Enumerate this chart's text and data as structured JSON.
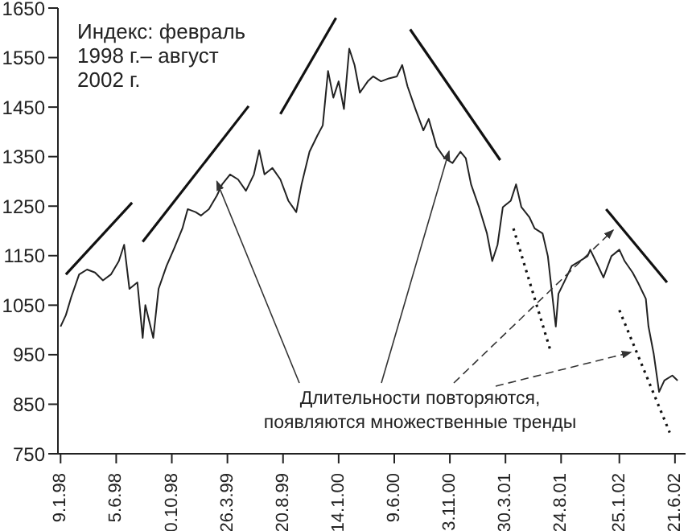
{
  "chart_data": {
    "type": "line",
    "title": "Индекс: февраль 1998 г.– август 2002 г.",
    "annotations": [
      {
        "text": "Длительности повторяются, появляются множественные тренды",
        "x": "1999-02-26",
        "y": 1300
      }
    ],
    "xlim": [
      "1998-01-02",
      "2002-07-19"
    ],
    "xticks": [
      {
        "value": "1998-01-09",
        "label": "9.1.98"
      },
      {
        "value": "1998-06-05",
        "label": "5.6.98"
      },
      {
        "value": "1998-10-30",
        "label": "0.10.98"
      },
      {
        "value": "1999-03-26",
        "label": "26.3.99"
      },
      {
        "value": "1999-08-20",
        "label": "20.8.99"
      },
      {
        "value": "2000-01-14",
        "label": "14.1.00"
      },
      {
        "value": "2000-06-09",
        "label": "9.6.00"
      },
      {
        "value": "2000-11-03",
        "label": "3.11.00"
      },
      {
        "value": "2001-03-30",
        "label": "30.3.01"
      },
      {
        "value": "2001-08-24",
        "label": "24.8.01"
      },
      {
        "value": "2002-01-25",
        "label": "25.1.02"
      },
      {
        "value": "2002-06-21",
        "label": "21.6.02"
      }
    ],
    "ylim": [
      750,
      1650
    ],
    "yticks": [
      750,
      850,
      950,
      1050,
      1150,
      1250,
      1350,
      1450,
      1550,
      1650
    ],
    "marker": "none",
    "x": [
      "1998-01-09",
      "1998-01-23",
      "1998-02-06",
      "1998-02-27",
      "1998-03-20",
      "1998-04-10",
      "1998-05-01",
      "1998-05-22",
      "1998-06-12",
      "1998-06-26",
      "1998-07-10",
      "1998-07-31",
      "1998-08-14",
      "1998-08-21",
      "1998-09-11",
      "1998-09-25",
      "1998-10-16",
      "1998-11-06",
      "1998-11-27",
      "1998-12-11",
      "1999-01-01",
      "1999-01-15",
      "1999-02-05",
      "1999-02-26",
      "1999-03-12",
      "1999-04-02",
      "1999-04-23",
      "1999-05-14",
      "1999-06-04",
      "1999-06-18",
      "1999-07-02",
      "1999-07-23",
      "1999-08-13",
      "1999-09-03",
      "1999-09-24",
      "1999-10-08",
      "1999-10-29",
      "1999-11-19",
      "1999-12-03",
      "1999-12-17",
      "1999-12-31",
      "2000-01-14",
      "2000-01-28",
      "2000-02-11",
      "2000-02-25",
      "2000-03-10",
      "2000-03-31",
      "2000-04-14",
      "2000-05-05",
      "2000-05-26",
      "2000-06-16",
      "2000-06-30",
      "2000-07-14",
      "2000-08-04",
      "2000-08-25",
      "2000-09-08",
      "2000-09-29",
      "2000-10-20",
      "2000-11-10",
      "2000-12-01",
      "2000-12-15",
      "2000-12-29",
      "2001-01-19",
      "2001-02-09",
      "2001-02-23",
      "2001-03-09",
      "2001-03-23",
      "2001-04-13",
      "2001-04-27",
      "2001-05-11",
      "2001-06-01",
      "2001-06-15",
      "2001-07-06",
      "2001-07-20",
      "2001-08-10",
      "2001-08-17",
      "2001-09-07",
      "2001-09-21",
      "2001-10-12",
      "2001-11-02",
      "2001-11-09",
      "2001-11-30",
      "2001-12-14",
      "2002-01-04",
      "2002-01-25",
      "2002-02-08",
      "2002-03-01",
      "2002-03-15",
      "2002-04-05",
      "2002-04-12",
      "2002-04-26",
      "2002-05-10",
      "2002-05-24",
      "2002-06-14",
      "2002-06-28"
    ],
    "series": [
      {
        "color": "#222222",
        "values": [
          1007,
          1030,
          1066,
          1112,
          1122,
          1116,
          1100,
          1112,
          1139,
          1172,
          1083,
          1096,
          984,
          1050,
          984,
          1083,
          1129,
          1166,
          1205,
          1244,
          1238,
          1231,
          1244,
          1271,
          1294,
          1314,
          1304,
          1281,
          1314,
          1363,
          1314,
          1327,
          1304,
          1261,
          1238,
          1294,
          1360,
          1393,
          1413,
          1523,
          1469,
          1502,
          1446,
          1568,
          1535,
          1479,
          1502,
          1512,
          1502,
          1508,
          1512,
          1535,
          1492,
          1446,
          1403,
          1426,
          1370,
          1347,
          1337,
          1360,
          1347,
          1294,
          1248,
          1195,
          1139,
          1172,
          1248,
          1261,
          1294,
          1248,
          1228,
          1205,
          1195,
          1149,
          1007,
          1073,
          1106,
          1129,
          1139,
          1149,
          1162,
          1129,
          1106,
          1149,
          1162,
          1139,
          1116,
          1096,
          1063,
          1007,
          951,
          875,
          898,
          908,
          898
        ]
      },
      {
        "color": "#111111",
        "line_style": "solid",
        "x": [
          "1998-01-23",
          "1998-07-17"
        ],
        "values": [
          1112,
          1257
        ]
      },
      {
        "color": "#111111",
        "line_style": "solid",
        "x": [
          "1998-08-14",
          "1999-05-21"
        ],
        "values": [
          1178,
          1452
        ]
      },
      {
        "color": "#111111",
        "line_style": "solid",
        "x": [
          "1999-08-13",
          "2000-01-07"
        ],
        "values": [
          1436,
          1630
        ]
      },
      {
        "color": "#111111",
        "line_style": "solid",
        "x": [
          "2000-07-21",
          "2001-03-16"
        ],
        "values": [
          1607,
          1343
        ]
      },
      {
        "color": "#111111",
        "line_style": "dotted",
        "x": [
          "2001-04-20",
          "2001-07-27"
        ],
        "values": [
          1205,
          958
        ]
      },
      {
        "color": "#111111",
        "line_style": "solid",
        "x": [
          "2001-12-21",
          "2002-05-31"
        ],
        "values": [
          1244,
          1096
        ]
      },
      {
        "color": "#111111",
        "line_style": "dotted",
        "x": [
          "2002-01-25",
          "2002-06-07"
        ],
        "values": [
          1040,
          793
        ]
      }
    ]
  }
}
